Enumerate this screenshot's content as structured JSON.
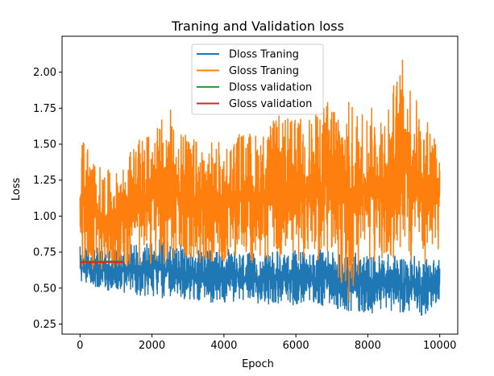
{
  "chart_data": {
    "type": "line",
    "title": "Traning and Validation loss",
    "xlabel": "Epoch",
    "ylabel": "Loss",
    "xlim": [
      -500,
      10500
    ],
    "ylim": [
      0.18,
      2.25
    ],
    "xticks": [
      0,
      2000,
      4000,
      6000,
      8000,
      10000
    ],
    "xtick_labels": [
      "0",
      "2000",
      "4000",
      "6000",
      "8000",
      "10000"
    ],
    "yticks": [
      0.25,
      0.5,
      0.75,
      1.0,
      1.25,
      1.5,
      1.75,
      2.0
    ],
    "ytick_labels": [
      "0.25",
      "0.50",
      "0.75",
      "1.00",
      "1.25",
      "1.50",
      "1.75",
      "2.00"
    ],
    "grid": false,
    "legend_position": "top-center",
    "series": [
      {
        "name": "Dloss Traning",
        "color": "#1f77b4",
        "x": [
          0,
          500,
          1000,
          1500,
          2000,
          2500,
          3000,
          3500,
          4000,
          4500,
          5000,
          5500,
          6000,
          6500,
          7000,
          7500,
          8000,
          8500,
          9000,
          9500,
          10000
        ],
        "y_min": [
          0.55,
          0.5,
          0.47,
          0.45,
          0.44,
          0.42,
          0.41,
          0.4,
          0.4,
          0.4,
          0.39,
          0.39,
          0.38,
          0.38,
          0.37,
          0.33,
          0.32,
          0.35,
          0.33,
          0.3,
          0.4
        ],
        "y_max": [
          0.8,
          0.78,
          0.78,
          0.82,
          0.85,
          0.83,
          0.78,
          0.76,
          0.78,
          0.75,
          0.74,
          0.76,
          0.77,
          0.76,
          0.78,
          0.76,
          0.73,
          0.74,
          0.73,
          0.72,
          0.72
        ]
      },
      {
        "name": "Gloss Traning",
        "color": "#ff7f0e",
        "x": [
          0,
          500,
          1000,
          1500,
          2000,
          2500,
          3000,
          3500,
          4000,
          4500,
          5000,
          5500,
          6000,
          6500,
          7000,
          7500,
          8000,
          8500,
          9000,
          9500,
          10000
        ],
        "y_min": [
          0.62,
          0.62,
          0.64,
          0.64,
          0.66,
          0.66,
          0.66,
          0.66,
          0.68,
          0.68,
          0.66,
          0.66,
          0.68,
          0.68,
          0.68,
          0.38,
          0.62,
          0.66,
          0.68,
          0.66,
          0.7
        ],
        "y_max": [
          1.62,
          1.35,
          1.3,
          1.5,
          1.6,
          1.75,
          1.55,
          1.52,
          1.52,
          1.6,
          1.58,
          1.7,
          1.68,
          1.72,
          1.85,
          1.8,
          1.75,
          1.8,
          2.12,
          1.7,
          1.65
        ]
      },
      {
        "name": "Dloss validation",
        "color": "#2ca02c",
        "x": [
          0,
          1200
        ],
        "y": [
          0.685,
          0.685
        ]
      },
      {
        "name": "Gloss validation",
        "color": "#d62728",
        "x": [
          0,
          1200
        ],
        "y": [
          0.68,
          0.68
        ]
      }
    ]
  }
}
